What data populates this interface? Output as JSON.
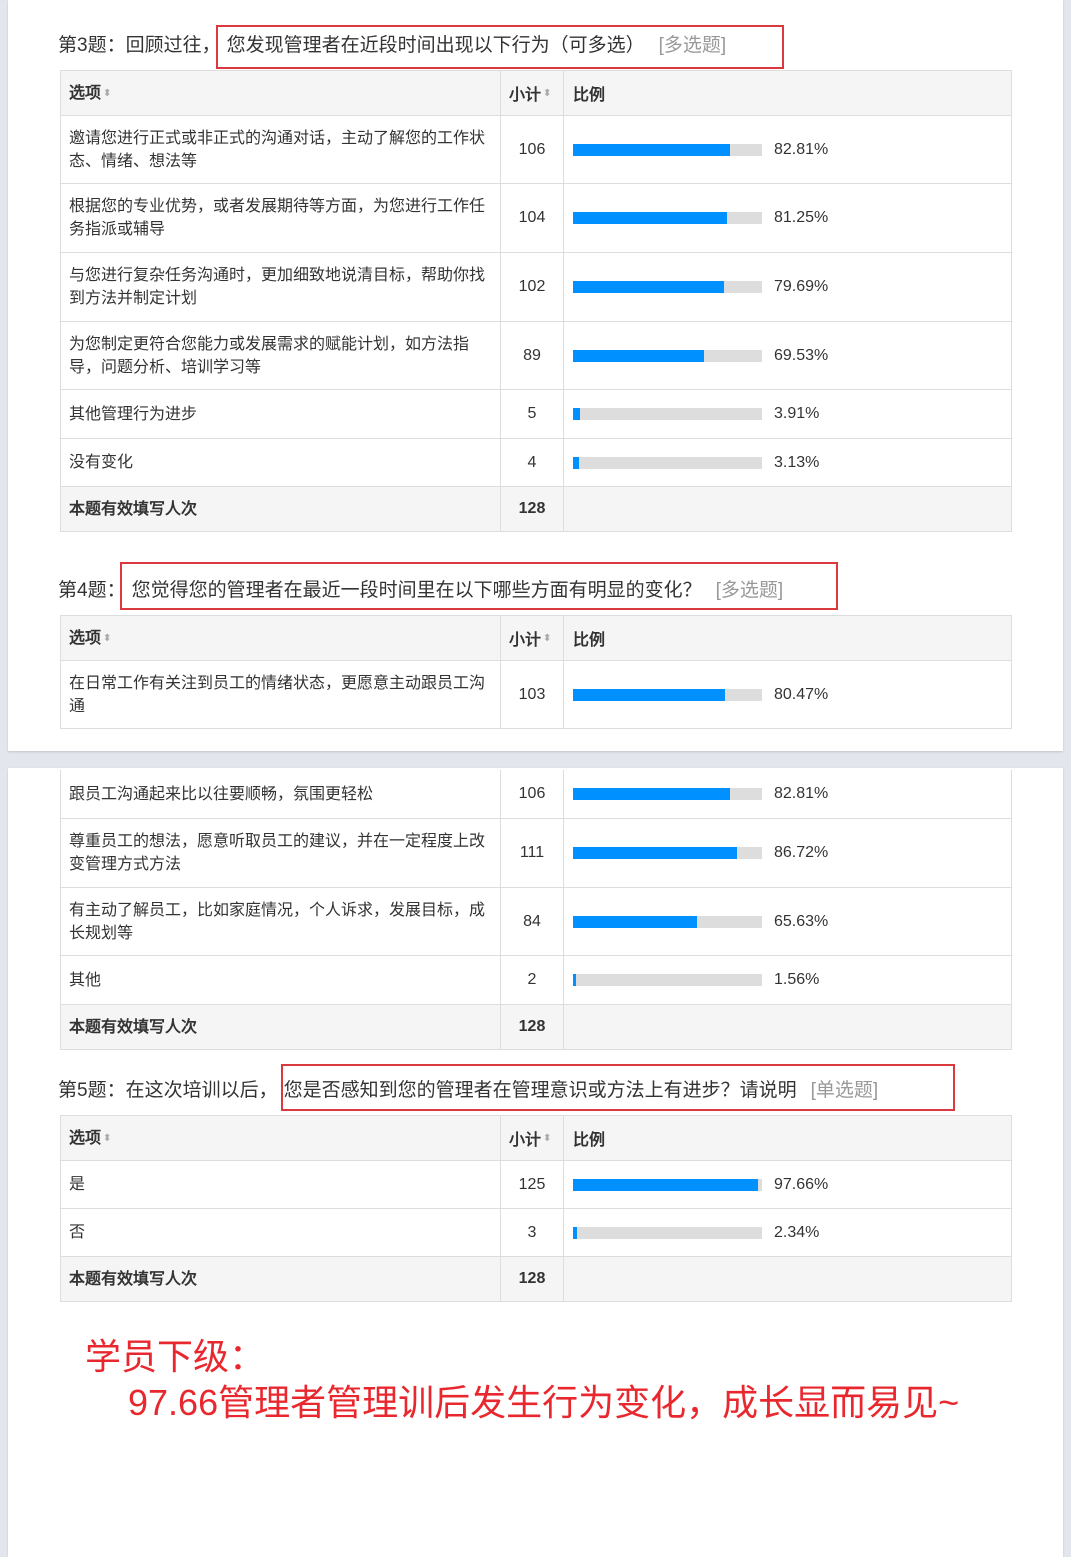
{
  "headers": {
    "option": "选项",
    "count": "小计",
    "ratio": "比例",
    "sort_icon": "sort-icon"
  },
  "q3": {
    "prefix": "第3题：回顾过往，",
    "title": "您发现管理者在近段时间出现以下行为（可多选）",
    "tag": "[多选题]",
    "rows": [
      {
        "label": "邀请您进行正式或非正式的沟通对话，主动了解您的工作状态、情绪、想法等",
        "count": "106",
        "pct": 82.81,
        "pct_text": "82.81%"
      },
      {
        "label": "根据您的专业优势，或者发展期待等方面，为您进行工作任务指派或辅导",
        "count": "104",
        "pct": 81.25,
        "pct_text": "81.25%"
      },
      {
        "label": "与您进行复杂任务沟通时，更加细致地说清目标，帮助你找到方法并制定计划",
        "count": "102",
        "pct": 79.69,
        "pct_text": "79.69%"
      },
      {
        "label": "为您制定更符合您能力或发展需求的赋能计划，如方法指导，问题分析、培训学习等",
        "count": "89",
        "pct": 69.53,
        "pct_text": "69.53%"
      },
      {
        "label": "其他管理行为进步",
        "count": "5",
        "pct": 3.91,
        "pct_text": "3.91%"
      },
      {
        "label": "没有变化",
        "count": "4",
        "pct": 3.13,
        "pct_text": "3.13%"
      }
    ],
    "footer_label": "本题有效填写人次",
    "footer_count": "128"
  },
  "q4": {
    "prefix": "第4题：",
    "title": "您觉得您的管理者在最近一段时间里在以下哪些方面有明显的变化？",
    "tag": "[多选题]",
    "rows": [
      {
        "label": "在日常工作有关注到员工的情绪状态，更愿意主动跟员工沟通",
        "count": "103",
        "pct": 80.47,
        "pct_text": "80.47%"
      },
      {
        "label": "跟员工沟通起来比以往要顺畅，氛围更轻松",
        "count": "106",
        "pct": 82.81,
        "pct_text": "82.81%"
      },
      {
        "label": "尊重员工的想法，愿意听取员工的建议，并在一定程度上改变管理方式方法",
        "count": "111",
        "pct": 86.72,
        "pct_text": "86.72%"
      },
      {
        "label": "有主动了解员工，比如家庭情况，个人诉求，发展目标，成长规划等",
        "count": "84",
        "pct": 65.63,
        "pct_text": "65.63%"
      },
      {
        "label": "其他",
        "count": "2",
        "pct": 1.56,
        "pct_text": "1.56%"
      }
    ],
    "footer_label": "本题有效填写人次",
    "footer_count": "128"
  },
  "q5": {
    "prefix": "第5题：在这次培训以后，",
    "title": "您是否感知到您的管理者在管理意识或方法上有进步？请说明",
    "tag": "[单选题]",
    "rows": [
      {
        "label": "是",
        "count": "125",
        "pct": 97.66,
        "pct_text": "97.66%"
      },
      {
        "label": "否",
        "count": "3",
        "pct": 2.34,
        "pct_text": "2.34%"
      }
    ],
    "footer_label": "本题有效填写人次",
    "footer_count": "128"
  },
  "note": {
    "line1": "学员下级：",
    "line2": "97.66管理者管理训后发生行为变化，成长显而易见~"
  },
  "colors": {
    "bar": "#0090ff",
    "track": "#dddddd",
    "highlight": "#d9393f",
    "note": "#e8282e"
  }
}
